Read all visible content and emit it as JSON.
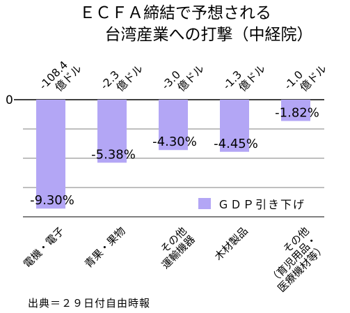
{
  "chart_data": {
    "type": "bar",
    "title_lines": [
      "ＥＣＦＡ締結で予想される",
      "台湾産業への打撃（中経院）"
    ],
    "categories": [
      [
        "電機・電子"
      ],
      [
        "青果・果物"
      ],
      [
        "その他",
        "運輸機器"
      ],
      [
        "木材製品"
      ],
      [
        "その他",
        "（育児用品・",
        "医療機材等）"
      ]
    ],
    "amounts": [
      [
        "-108.4",
        "億ドル"
      ],
      [
        "-2.3",
        "億ドル"
      ],
      [
        "-3.0",
        "億ドル"
      ],
      [
        "-1.3",
        "億ドル"
      ],
      [
        "-1.0",
        "億ドル"
      ]
    ],
    "series": [
      {
        "name": "ＧＤＰ引き下げ",
        "values": [
          -9.3,
          -5.38,
          -4.3,
          -4.45,
          -1.82
        ],
        "labels": [
          "-9.30%",
          "-5.38%",
          "-4.30%",
          "-4.45%",
          "-1.82%"
        ],
        "color": "#b3a6f5"
      }
    ],
    "ylim": [
      -10,
      0
    ],
    "zero_tick_label": "0",
    "legend_position": "bottom-right",
    "grid": true,
    "source": "出典＝２９日付自由時報"
  }
}
